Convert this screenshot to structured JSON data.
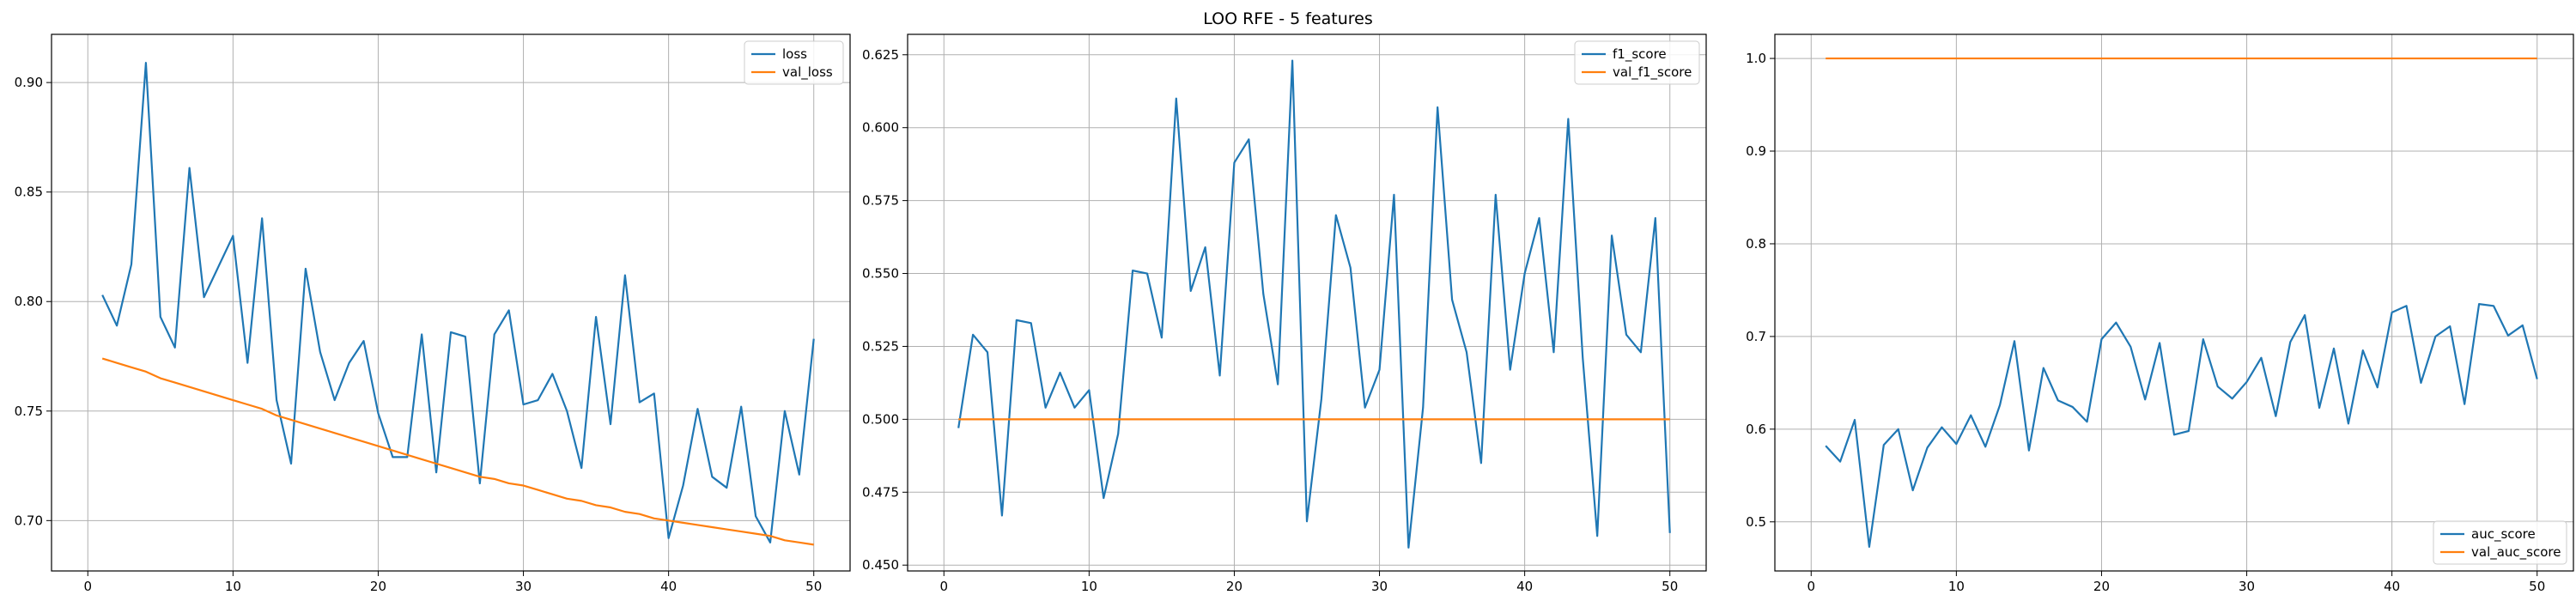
{
  "figure": {
    "title": "LOO RFE - 5 features"
  },
  "chart_data": [
    {
      "type": "line",
      "title": "",
      "xlabel": "",
      "ylabel": "",
      "xlim": [
        -2.5,
        52.5
      ],
      "ylim": [
        0.677,
        0.922
      ],
      "xticks": [
        0,
        10,
        20,
        30,
        40,
        50
      ],
      "yticks": [
        0.7,
        0.75,
        0.8,
        0.85,
        0.9
      ],
      "ytick_labels": [
        "0.70",
        "0.75",
        "0.80",
        "0.85",
        "0.90"
      ],
      "grid": true,
      "legend_position": "upper right",
      "x": [
        1,
        2,
        3,
        4,
        5,
        6,
        7,
        8,
        9,
        10,
        11,
        12,
        13,
        14,
        15,
        16,
        17,
        18,
        19,
        20,
        21,
        22,
        23,
        24,
        25,
        26,
        27,
        28,
        29,
        30,
        31,
        32,
        33,
        34,
        35,
        36,
        37,
        38,
        39,
        40,
        41,
        42,
        43,
        44,
        45,
        46,
        47,
        48,
        49,
        50
      ],
      "series": [
        {
          "name": "loss",
          "color": "#1f77b4",
          "values": [
            0.803,
            0.789,
            0.817,
            0.909,
            0.793,
            0.779,
            0.861,
            0.802,
            0.816,
            0.83,
            0.772,
            0.838,
            0.755,
            0.726,
            0.815,
            0.777,
            0.755,
            0.772,
            0.782,
            0.749,
            0.729,
            0.729,
            0.785,
            0.722,
            0.786,
            0.784,
            0.717,
            0.785,
            0.796,
            0.753,
            0.755,
            0.767,
            0.75,
            0.724,
            0.793,
            0.744,
            0.812,
            0.754,
            0.758,
            0.692,
            0.716,
            0.751,
            0.72,
            0.715,
            0.752,
            0.702,
            0.69,
            0.75,
            0.721,
            0.783
          ]
        },
        {
          "name": "val_loss",
          "color": "#ff7f0e",
          "values": [
            0.774,
            0.772,
            0.77,
            0.768,
            0.765,
            0.763,
            0.761,
            0.759,
            0.757,
            0.755,
            0.753,
            0.751,
            0.748,
            0.746,
            0.744,
            0.742,
            0.74,
            0.738,
            0.736,
            0.734,
            0.732,
            0.73,
            0.728,
            0.726,
            0.724,
            0.722,
            0.72,
            0.719,
            0.717,
            0.716,
            0.714,
            0.712,
            0.71,
            0.709,
            0.707,
            0.706,
            0.704,
            0.703,
            0.701,
            0.7,
            0.699,
            0.698,
            0.697,
            0.696,
            0.695,
            0.694,
            0.693,
            0.691,
            0.69,
            0.689
          ]
        }
      ]
    },
    {
      "type": "line",
      "title": "",
      "xlabel": "",
      "ylabel": "",
      "xlim": [
        -2.5,
        52.5
      ],
      "ylim": [
        0.448,
        0.632
      ],
      "xticks": [
        0,
        10,
        20,
        30,
        40,
        50
      ],
      "yticks": [
        0.45,
        0.475,
        0.5,
        0.525,
        0.55,
        0.575,
        0.6,
        0.625
      ],
      "ytick_labels": [
        "0.450",
        "0.475",
        "0.500",
        "0.525",
        "0.550",
        "0.575",
        "0.600",
        "0.625"
      ],
      "grid": true,
      "legend_position": "upper right",
      "x": [
        1,
        2,
        3,
        4,
        5,
        6,
        7,
        8,
        9,
        10,
        11,
        12,
        13,
        14,
        15,
        16,
        17,
        18,
        19,
        20,
        21,
        22,
        23,
        24,
        25,
        26,
        27,
        28,
        29,
        30,
        31,
        32,
        33,
        34,
        35,
        36,
        37,
        38,
        39,
        40,
        41,
        42,
        43,
        44,
        45,
        46,
        47,
        48,
        49,
        50
      ],
      "series": [
        {
          "name": "f1_score",
          "color": "#1f77b4",
          "values": [
            0.497,
            0.529,
            0.523,
            0.467,
            0.534,
            0.533,
            0.504,
            0.516,
            0.504,
            0.51,
            0.473,
            0.495,
            0.551,
            0.55,
            0.528,
            0.61,
            0.544,
            0.559,
            0.515,
            0.588,
            0.596,
            0.543,
            0.512,
            0.623,
            0.465,
            0.507,
            0.57,
            0.552,
            0.504,
            0.517,
            0.577,
            0.456,
            0.504,
            0.607,
            0.541,
            0.523,
            0.485,
            0.577,
            0.517,
            0.55,
            0.569,
            0.523,
            0.603,
            0.521,
            0.46,
            0.563,
            0.529,
            0.523,
            0.569,
            0.461
          ]
        },
        {
          "name": "val_f1_score",
          "color": "#ff7f0e",
          "values": [
            0.5,
            0.5,
            0.5,
            0.5,
            0.5,
            0.5,
            0.5,
            0.5,
            0.5,
            0.5,
            0.5,
            0.5,
            0.5,
            0.5,
            0.5,
            0.5,
            0.5,
            0.5,
            0.5,
            0.5,
            0.5,
            0.5,
            0.5,
            0.5,
            0.5,
            0.5,
            0.5,
            0.5,
            0.5,
            0.5,
            0.5,
            0.5,
            0.5,
            0.5,
            0.5,
            0.5,
            0.5,
            0.5,
            0.5,
            0.5,
            0.5,
            0.5,
            0.5,
            0.5,
            0.5,
            0.5,
            0.5,
            0.5,
            0.5,
            0.5
          ]
        }
      ]
    },
    {
      "type": "line",
      "title": "",
      "xlabel": "",
      "ylabel": "",
      "xlim": [
        -2.5,
        52.5
      ],
      "ylim": [
        0.447,
        1.026
      ],
      "xticks": [
        0,
        10,
        20,
        30,
        40,
        50
      ],
      "yticks": [
        0.5,
        0.6,
        0.7,
        0.8,
        0.9,
        1.0
      ],
      "ytick_labels": [
        "0.5",
        "0.6",
        "0.7",
        "0.8",
        "0.9",
        "1.0"
      ],
      "grid": true,
      "legend_position": "lower right",
      "x": [
        1,
        2,
        3,
        4,
        5,
        6,
        7,
        8,
        9,
        10,
        11,
        12,
        13,
        14,
        15,
        16,
        17,
        18,
        19,
        20,
        21,
        22,
        23,
        24,
        25,
        26,
        27,
        28,
        29,
        30,
        31,
        32,
        33,
        34,
        35,
        36,
        37,
        38,
        39,
        40,
        41,
        42,
        43,
        44,
        45,
        46,
        47,
        48,
        49,
        50
      ],
      "series": [
        {
          "name": "auc_score",
          "color": "#1f77b4",
          "values": [
            0.582,
            0.565,
            0.61,
            0.473,
            0.583,
            0.6,
            0.534,
            0.58,
            0.602,
            0.584,
            0.615,
            0.581,
            0.626,
            0.695,
            0.577,
            0.666,
            0.631,
            0.624,
            0.608,
            0.697,
            0.715,
            0.689,
            0.632,
            0.693,
            0.594,
            0.598,
            0.697,
            0.646,
            0.633,
            0.651,
            0.677,
            0.614,
            0.694,
            0.723,
            0.623,
            0.687,
            0.606,
            0.685,
            0.645,
            0.726,
            0.733,
            0.65,
            0.7,
            0.711,
            0.627,
            0.735,
            0.733,
            0.701,
            0.712,
            0.654
          ]
        },
        {
          "name": "val_auc_score",
          "color": "#ff7f0e",
          "values": [
            1.0,
            1.0,
            1.0,
            1.0,
            1.0,
            1.0,
            1.0,
            1.0,
            1.0,
            1.0,
            1.0,
            1.0,
            1.0,
            1.0,
            1.0,
            1.0,
            1.0,
            1.0,
            1.0,
            1.0,
            1.0,
            1.0,
            1.0,
            1.0,
            1.0,
            1.0,
            1.0,
            1.0,
            1.0,
            1.0,
            1.0,
            1.0,
            1.0,
            1.0,
            1.0,
            1.0,
            1.0,
            1.0,
            1.0,
            1.0,
            1.0,
            1.0,
            1.0,
            1.0,
            1.0,
            1.0,
            1.0,
            1.0,
            1.0,
            1.0
          ]
        }
      ]
    }
  ]
}
